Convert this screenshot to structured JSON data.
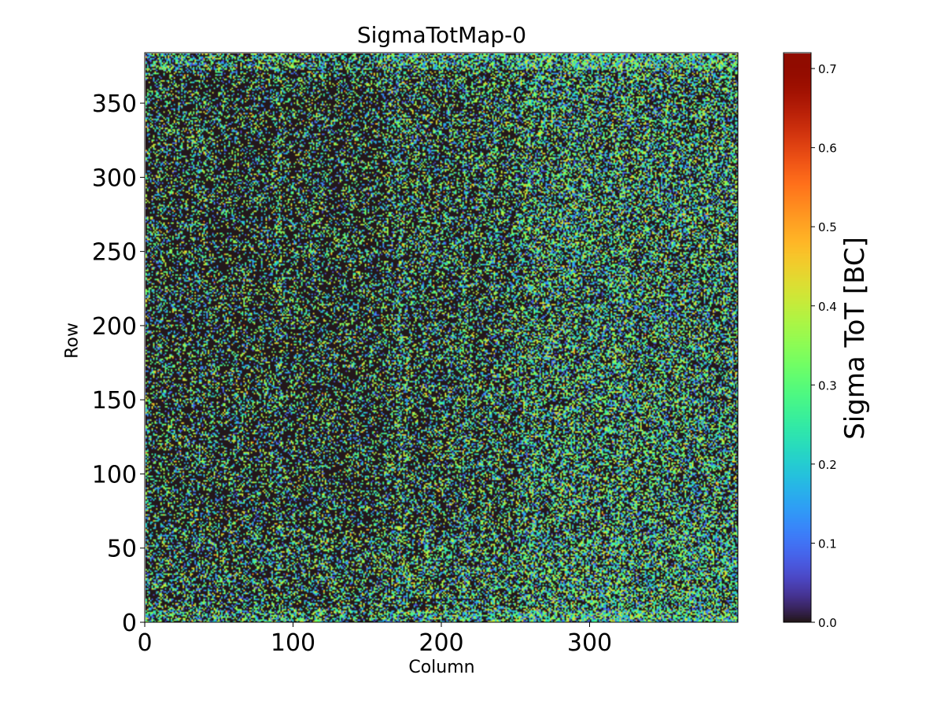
{
  "chart_data": {
    "type": "heatmap",
    "title": "SigmaTotMap-0",
    "xlabel": "Column",
    "ylabel": "Row",
    "colorbar_label": "Sigma ToT [BC]",
    "colormap": "turbo",
    "xlim": [
      0,
      400
    ],
    "ylim": [
      0,
      384
    ],
    "grid_columns": 400,
    "grid_rows": 384,
    "value_range": [
      0.0,
      0.72
    ],
    "x_ticks": [
      0,
      100,
      200,
      300
    ],
    "y_ticks": [
      0,
      50,
      100,
      150,
      200,
      250,
      300,
      350
    ],
    "colorbar_ticks": [
      0.0,
      0.1,
      0.2,
      0.3,
      0.4,
      0.5,
      0.6,
      0.7
    ],
    "x_tick_labels": [
      "0",
      "100",
      "200",
      "300"
    ],
    "y_tick_labels": [
      "0",
      "50",
      "100",
      "150",
      "200",
      "250",
      "300",
      "350"
    ],
    "colorbar_tick_labels": [
      "0.0",
      "0.1",
      "0.2",
      "0.3",
      "0.4",
      "0.5",
      "0.6",
      "0.7"
    ],
    "grid": false
  }
}
